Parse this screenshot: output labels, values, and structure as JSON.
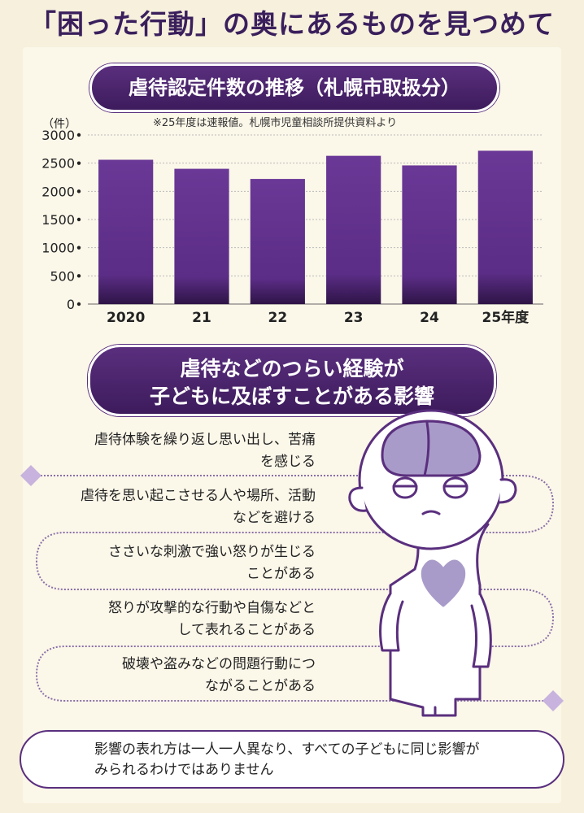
{
  "title": "「困った行動」の奥にあるものを見つめて",
  "chart_heading": "虐待認定件数の推移（札幌市取扱分）",
  "chart_note": "※25年度は速報値。札幌市児童相談所提供資料より",
  "chart_data": {
    "type": "bar",
    "unit_label": "（件）",
    "categories": [
      "2020",
      "21",
      "22",
      "23",
      "24",
      "25年度"
    ],
    "values": [
      2560,
      2400,
      2220,
      2630,
      2460,
      2720
    ],
    "yticks": [
      "3000",
      "2500",
      "2000",
      "1500",
      "1000",
      "500",
      "0"
    ],
    "ylim": [
      0,
      3000
    ],
    "grid": true,
    "bar_color": "#5b2d86"
  },
  "effects_heading": [
    "虐待などのつらい経験が",
    "子どもに及ぼすことがある影響"
  ],
  "effects": [
    [
      "虐待体験を繰り返し思い出し、苦痛",
      "を感じる"
    ],
    [
      "虐待を思い起こさせる人や場所、活動",
      "などを避ける"
    ],
    [
      "ささいな刺激で強い怒りが生じる",
      "ことがある"
    ],
    [
      "怒りが攻撃的な行動や自傷などと",
      "して表れることがある"
    ],
    [
      "破壊や盗みなどの問題行動につ",
      "ながることがある"
    ]
  ],
  "footnote": [
    "影響の表れ方は一人一人異なり、すべての子どもに同じ影響が",
    "みられるわけではありません"
  ],
  "colors": {
    "accent": "#5a2f7e",
    "title": "#3a1f5c",
    "background": "#f6f0dc"
  }
}
